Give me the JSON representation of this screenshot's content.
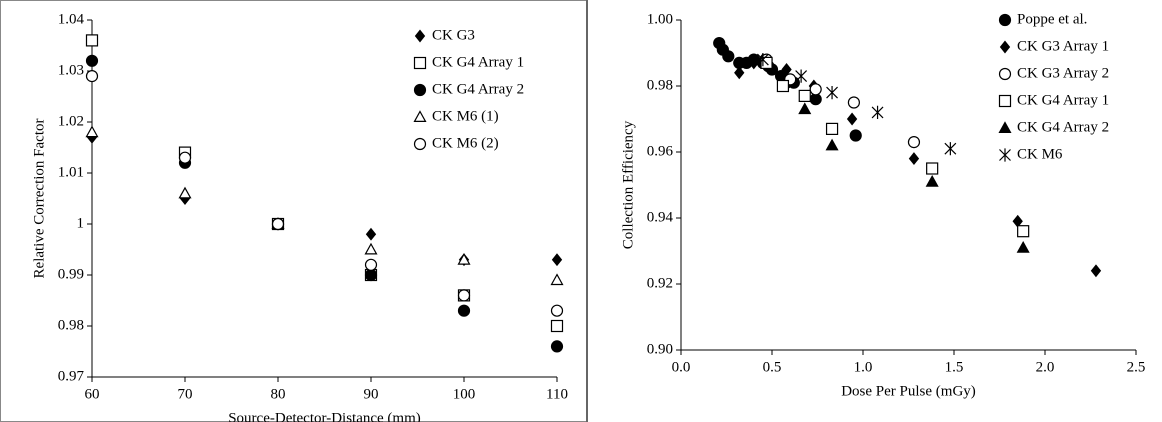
{
  "chart_data": [
    {
      "type": "scatter",
      "x_label": "Source-Detector-Distance (mm)",
      "y_label": "Relative Correction Factor",
      "xlim": [
        60,
        110
      ],
      "xticks": [
        60,
        70,
        80,
        90,
        100,
        110
      ],
      "ylim": [
        0.97,
        1.04
      ],
      "yticks": [
        0.97,
        0.98,
        0.99,
        1,
        1.01,
        1.02,
        1.03,
        1.04
      ],
      "grid": false,
      "legend": "upper right",
      "series": [
        {
          "name": "CK G3",
          "color": "#000000",
          "marker": "diamond",
          "filled": true,
          "x": [
            60,
            70,
            80,
            90,
            100,
            110
          ],
          "values": [
            1.017,
            1.005,
            1.0,
            0.998,
            0.993,
            0.993
          ]
        },
        {
          "name": "CK G4 Array 1",
          "color": "#000000",
          "marker": "square",
          "filled": false,
          "x": [
            60,
            70,
            80,
            90,
            100,
            110
          ],
          "values": [
            1.036,
            1.014,
            1.0,
            0.99,
            0.986,
            0.98
          ]
        },
        {
          "name": "CK G4 Array 2",
          "color": "#000000",
          "marker": "circle",
          "filled": true,
          "x": [
            60,
            70,
            80,
            90,
            100,
            110
          ],
          "values": [
            1.032,
            1.012,
            1.0,
            0.99,
            0.983,
            0.976
          ]
        },
        {
          "name": "CK M6 (1)",
          "color": "#000000",
          "marker": "triangle",
          "filled": false,
          "x": [
            60,
            70,
            80,
            90,
            100,
            110
          ],
          "values": [
            1.018,
            1.006,
            1.0,
            0.995,
            0.993,
            0.989
          ]
        },
        {
          "name": "CK M6 (2)",
          "color": "#000000",
          "marker": "circle",
          "filled": false,
          "x": [
            60,
            70,
            80,
            90,
            100,
            110
          ],
          "values": [
            1.029,
            1.013,
            1.0,
            0.992,
            0.986,
            0.983
          ]
        }
      ]
    },
    {
      "type": "scatter",
      "x_label": "Dose Per Pulse (mGy)",
      "y_label": "Collection Efficiency",
      "xlim": [
        0,
        2.5
      ],
      "xticks": [
        {
          "value": 0,
          "label": "0.0"
        },
        0.5,
        {
          "value": 1,
          "label": "1.0"
        },
        1.5,
        {
          "value": 2,
          "label": "2.0"
        },
        2.5
      ],
      "ylim": [
        0.9,
        1.0
      ],
      "yticks": [
        {
          "value": 0.9,
          "label": "0.90"
        },
        0.92,
        0.94,
        0.96,
        0.98,
        {
          "value": 1,
          "label": "1.00"
        }
      ],
      "grid": false,
      "legend": "upper right",
      "series": [
        {
          "name": "Poppe et al.",
          "color": "#000000",
          "marker": "circle",
          "filled": true,
          "x": [
            0.21,
            0.23,
            0.26,
            0.32,
            0.36,
            0.4,
            0.45,
            0.48,
            0.5,
            0.55,
            0.58,
            0.62,
            0.74,
            0.96
          ],
          "values": [
            0.993,
            0.991,
            0.989,
            0.987,
            0.987,
            0.988,
            0.987,
            0.986,
            0.985,
            0.983,
            0.981,
            0.981,
            0.976,
            0.965
          ]
        },
        {
          "name": "CK G3 Array 1",
          "color": "#000000",
          "marker": "diamond",
          "filled": true,
          "x": [
            0.32,
            0.4,
            0.45,
            0.58,
            0.73,
            0.94,
            1.28,
            1.85,
            2.28
          ],
          "values": [
            0.984,
            0.987,
            0.988,
            0.985,
            0.98,
            0.97,
            0.958,
            0.939,
            0.924
          ]
        },
        {
          "name": "CK G3 Array 2",
          "color": "#000000",
          "marker": "circle",
          "filled": false,
          "x": [
            0.47,
            0.6,
            0.74,
            0.95,
            1.28
          ],
          "values": [
            0.988,
            0.982,
            0.979,
            0.975,
            0.963
          ]
        },
        {
          "name": "CK G4 Array 1",
          "color": "#000000",
          "marker": "square",
          "filled": false,
          "x": [
            0.47,
            0.56,
            0.68,
            0.83,
            1.38,
            1.88
          ],
          "values": [
            0.987,
            0.98,
            0.977,
            0.967,
            0.955,
            0.936
          ]
        },
        {
          "name": "CK G4 Array 2",
          "color": "#000000",
          "marker": "triangle",
          "filled": true,
          "x": [
            0.68,
            0.83,
            1.38,
            1.88
          ],
          "values": [
            0.973,
            0.962,
            0.951,
            0.931
          ]
        },
        {
          "name": "CK M6",
          "color": "#000000",
          "marker": "asterisk",
          "filled": false,
          "x": [
            0.45,
            0.66,
            0.83,
            1.08,
            1.48
          ],
          "values": [
            0.988,
            0.983,
            0.978,
            0.972,
            0.961
          ]
        }
      ]
    }
  ]
}
